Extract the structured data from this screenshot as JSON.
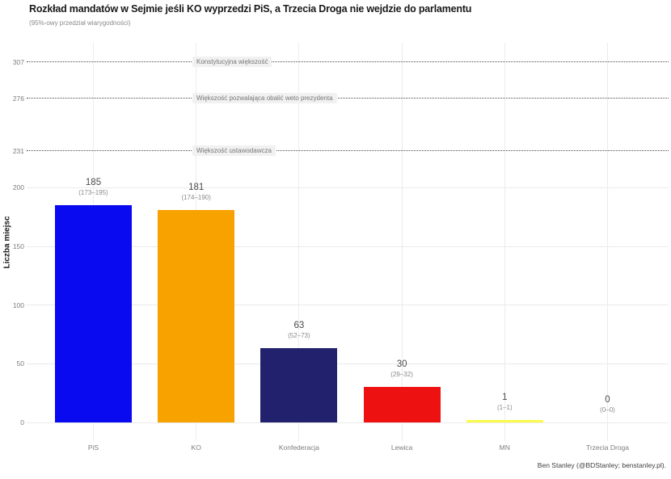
{
  "chart_data": {
    "type": "bar",
    "title": "Rozkład mandatów w Sejmie jeśli KO wyprzedzi PiS, a Trzecia Droga nie wejdzie do parlamentu",
    "subtitle": "(95%-owy przedział wiarygodności)",
    "ylabel": "Liczba miejsc",
    "caption": "Ben Stanley (@BDStanley; benstanley.pl).",
    "categories": [
      "PiS",
      "KO",
      "Konfederacja",
      "Lewica",
      "MN",
      "Trzecia Droga"
    ],
    "values": [
      185,
      181,
      63,
      30,
      1,
      0
    ],
    "intervals": [
      "(173–195)",
      "(174–190)",
      "(52–73)",
      "(29–32)",
      "(1–1)",
      "(0–0)"
    ],
    "bar_colors": [
      "#0a0af0",
      "#f8a200",
      "#21216e",
      "#ee1111",
      "#fbfb4a",
      "#cccccc"
    ],
    "yticks": [
      0,
      50,
      100,
      150,
      200
    ],
    "thresholds": [
      {
        "value": 231,
        "label": "Większość ustawodawcza"
      },
      {
        "value": 276,
        "label": "Większość pozwalająca obalić weto prezydenta"
      },
      {
        "value": 307,
        "label": "Konstytucyjna większość"
      }
    ],
    "ylim": [
      0,
      322
    ],
    "grid": true,
    "legend": "none"
  }
}
